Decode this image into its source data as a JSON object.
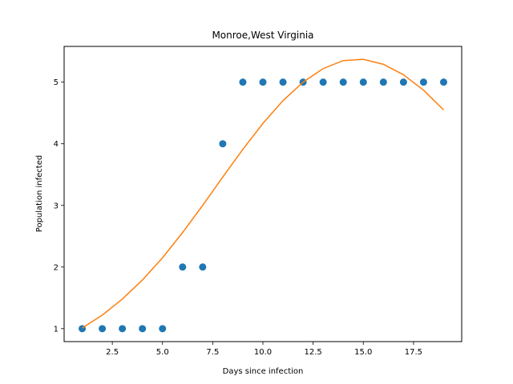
{
  "chart_data": {
    "type": "scatter",
    "title": "Monroe,West Virginia",
    "xlabel": "Days since infection",
    "ylabel": "Population infected",
    "xlim": [
      0.1,
      19.9
    ],
    "ylim": [
      0.79,
      5.58
    ],
    "x_ticks": [
      2.5,
      5.0,
      7.5,
      10.0,
      12.5,
      15.0,
      17.5
    ],
    "x_tick_labels": [
      "2.5",
      "5.0",
      "7.5",
      "10.0",
      "12.5",
      "15.0",
      "17.5"
    ],
    "y_ticks": [
      1,
      2,
      3,
      4,
      5
    ],
    "y_tick_labels": [
      "1",
      "2",
      "3",
      "4",
      "5"
    ],
    "grid": false,
    "series": [
      {
        "kind": "points",
        "color": "#1f77b4",
        "x": [
          1,
          2,
          3,
          4,
          5,
          6,
          7,
          8,
          9,
          10,
          11,
          12,
          13,
          14,
          15,
          16,
          17,
          18,
          19
        ],
        "y": [
          1,
          1,
          1,
          1,
          1,
          2,
          2,
          4,
          5,
          5,
          5,
          5,
          5,
          5,
          5,
          5,
          5,
          5,
          5
        ]
      },
      {
        "kind": "line",
        "color": "#ff7f0e",
        "x": [
          1,
          2,
          3,
          4,
          5,
          6,
          7,
          8,
          9,
          10,
          11,
          12,
          13,
          14,
          15,
          16,
          17,
          18,
          19
        ],
        "y": [
          1.01,
          1.22,
          1.48,
          1.79,
          2.15,
          2.56,
          3.0,
          3.46,
          3.91,
          4.33,
          4.7,
          5.0,
          5.22,
          5.35,
          5.37,
          5.29,
          5.12,
          4.87,
          4.55
        ]
      }
    ]
  }
}
